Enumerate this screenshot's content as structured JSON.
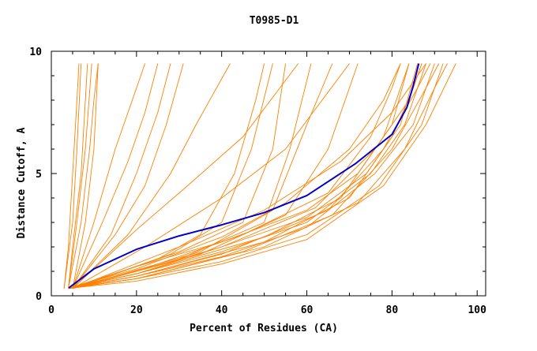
{
  "chart_data": {
    "type": "line",
    "title": "T0985-D1",
    "xlabel": "Percent of Residues (CA)",
    "ylabel": "Distance Cutoff, A",
    "xlim": [
      0,
      102
    ],
    "ylim": [
      0,
      10
    ],
    "xticks": [
      "0",
      "20",
      "40",
      "60",
      "80",
      "100"
    ],
    "xtick_values": [
      0,
      20,
      40,
      60,
      80,
      100
    ],
    "yticks": [
      "0",
      "5",
      "10"
    ],
    "ytick_values": [
      0,
      5,
      10
    ],
    "grid": false,
    "colors": {
      "others": "#ff8000",
      "highlight": "#0000cc"
    },
    "series": [
      {
        "points": [
          [
            3,
            0.3
          ],
          [
            4,
            2
          ],
          [
            5,
            5
          ],
          [
            6,
            8
          ],
          [
            6.5,
            9.5
          ]
        ]
      },
      {
        "points": [
          [
            3,
            0.3
          ],
          [
            5,
            3
          ],
          [
            6,
            6
          ],
          [
            7,
            9.5
          ]
        ]
      },
      {
        "points": [
          [
            4,
            0.3
          ],
          [
            5,
            2
          ],
          [
            7,
            5
          ],
          [
            8,
            8
          ],
          [
            8.5,
            9.5
          ]
        ]
      },
      {
        "points": [
          [
            4,
            0.3
          ],
          [
            6,
            3
          ],
          [
            8,
            6
          ],
          [
            9.5,
            9.5
          ]
        ]
      },
      {
        "points": [
          [
            4,
            0.3
          ],
          [
            7,
            3
          ],
          [
            9,
            6
          ],
          [
            10,
            8
          ],
          [
            11,
            9.5
          ]
        ]
      },
      {
        "points": [
          [
            5,
            0.3
          ],
          [
            8,
            3
          ],
          [
            10,
            6
          ],
          [
            11,
            9.5
          ]
        ]
      },
      {
        "points": [
          [
            5,
            0.3
          ],
          [
            10,
            3
          ],
          [
            15,
            6
          ],
          [
            19,
            8
          ],
          [
            22,
            9.5
          ]
        ]
      },
      {
        "points": [
          [
            5,
            0.3
          ],
          [
            12,
            3
          ],
          [
            18,
            5.5
          ],
          [
            22,
            7.5
          ],
          [
            25,
            9.5
          ]
        ]
      },
      {
        "points": [
          [
            5,
            0.3
          ],
          [
            14,
            2.5
          ],
          [
            20,
            5
          ],
          [
            25,
            7.5
          ],
          [
            28,
            9.5
          ]
        ]
      },
      {
        "points": [
          [
            5,
            0.3
          ],
          [
            15,
            2.5
          ],
          [
            22,
            4.5
          ],
          [
            27,
            7
          ],
          [
            31,
            9.5
          ]
        ]
      },
      {
        "points": [
          [
            5,
            0.3
          ],
          [
            18,
            2.5
          ],
          [
            28,
            5
          ],
          [
            34,
            7
          ],
          [
            42,
            9.5
          ]
        ]
      },
      {
        "points": [
          [
            5,
            0.3
          ],
          [
            20,
            2.7
          ],
          [
            32,
            4.5
          ],
          [
            45,
            6.5
          ],
          [
            58,
            9.5
          ]
        ]
      },
      {
        "points": [
          [
            5,
            0.3
          ],
          [
            22,
            2
          ],
          [
            40,
            4
          ],
          [
            55,
            6
          ],
          [
            70,
            9.5
          ]
        ]
      },
      {
        "points": [
          [
            5,
            0.3
          ],
          [
            25,
            1.5
          ],
          [
            35,
            2.5
          ],
          [
            43,
            5
          ],
          [
            48,
            8
          ],
          [
            50,
            9.5
          ]
        ]
      },
      {
        "points": [
          [
            5,
            0.3
          ],
          [
            28,
            1.7
          ],
          [
            40,
            3
          ],
          [
            47,
            6
          ],
          [
            52,
            9.5
          ]
        ]
      },
      {
        "points": [
          [
            5,
            0.3
          ],
          [
            30,
            1.8
          ],
          [
            45,
            3
          ],
          [
            52,
            6
          ],
          [
            55,
            9.5
          ]
        ]
      },
      {
        "points": [
          [
            5,
            0.3
          ],
          [
            30,
            1.5
          ],
          [
            50,
            3
          ],
          [
            56,
            6
          ],
          [
            61,
            9.5
          ]
        ]
      },
      {
        "points": [
          [
            5,
            0.3
          ],
          [
            35,
            1.8
          ],
          [
            52,
            3.5
          ],
          [
            60,
            7
          ],
          [
            66,
            9.5
          ]
        ]
      },
      {
        "points": [
          [
            5,
            0.3
          ],
          [
            35,
            1.7
          ],
          [
            55,
            3.3
          ],
          [
            65,
            6
          ],
          [
            72,
            9.5
          ]
        ]
      },
      {
        "points": [
          [
            5,
            0.3
          ],
          [
            30,
            2
          ],
          [
            50,
            3.5
          ],
          [
            68,
            5.5
          ],
          [
            80,
            7.5
          ],
          [
            88,
            9.5
          ]
        ]
      },
      {
        "points": [
          [
            4,
            0.3
          ],
          [
            20,
            1.2
          ],
          [
            40,
            2.2
          ],
          [
            60,
            3.5
          ],
          [
            72,
            5
          ],
          [
            80,
            7
          ],
          [
            84,
            9.5
          ]
        ]
      },
      {
        "points": [
          [
            4,
            0.3
          ],
          [
            20,
            1
          ],
          [
            40,
            2
          ],
          [
            60,
            3.2
          ],
          [
            74,
            5
          ],
          [
            82,
            7
          ],
          [
            86,
            9.5
          ]
        ]
      },
      {
        "points": [
          [
            4,
            0.3
          ],
          [
            20,
            0.9
          ],
          [
            40,
            1.8
          ],
          [
            60,
            3
          ],
          [
            75,
            5
          ],
          [
            83,
            7
          ],
          [
            88,
            9.5
          ]
        ]
      },
      {
        "points": [
          [
            4,
            0.3
          ],
          [
            20,
            0.8
          ],
          [
            40,
            1.6
          ],
          [
            60,
            2.8
          ],
          [
            76,
            5
          ],
          [
            85,
            7
          ],
          [
            90,
            9.5
          ]
        ]
      },
      {
        "points": [
          [
            4,
            0.3
          ],
          [
            20,
            0.7
          ],
          [
            40,
            1.4
          ],
          [
            60,
            2.5
          ],
          [
            77,
            4.5
          ],
          [
            87,
            7
          ],
          [
            92,
            9.5
          ]
        ]
      },
      {
        "points": [
          [
            4,
            0.3
          ],
          [
            20,
            0.6
          ],
          [
            40,
            1.3
          ],
          [
            60,
            2.3
          ],
          [
            78,
            4.5
          ],
          [
            88,
            7
          ],
          [
            95,
            9.5
          ]
        ]
      },
      {
        "points": [
          [
            4,
            0.3
          ],
          [
            20,
            1.1
          ],
          [
            40,
            2.4
          ],
          [
            55,
            3.8
          ],
          [
            70,
            6
          ],
          [
            78,
            8
          ],
          [
            82,
            9.5
          ]
        ]
      },
      {
        "points": [
          [
            4,
            0.3
          ],
          [
            20,
            0.9
          ],
          [
            40,
            2
          ],
          [
            62,
            3.6
          ],
          [
            76,
            6
          ],
          [
            84,
            8
          ],
          [
            87,
            9.5
          ]
        ]
      },
      {
        "points": [
          [
            4,
            0.3
          ],
          [
            20,
            0.8
          ],
          [
            40,
            1.7
          ],
          [
            65,
            3.5
          ],
          [
            78,
            6
          ],
          [
            86,
            8.5
          ],
          [
            89,
            9.5
          ]
        ]
      },
      {
        "points": [
          [
            4,
            0.3
          ],
          [
            20,
            0.7
          ],
          [
            45,
            1.8
          ],
          [
            66,
            3.3
          ],
          [
            80,
            6
          ],
          [
            88,
            8.5
          ],
          [
            91,
            9.5
          ]
        ]
      },
      {
        "points": [
          [
            4,
            0.3
          ],
          [
            20,
            0.9
          ],
          [
            50,
            2.4
          ],
          [
            68,
            4
          ],
          [
            78,
            6.5
          ],
          [
            82,
            8.5
          ],
          [
            84,
            9.5
          ]
        ]
      },
      {
        "points": [
          [
            4,
            0.3
          ],
          [
            20,
            1
          ],
          [
            45,
            2.5
          ],
          [
            65,
            4.2
          ],
          [
            75,
            6.5
          ],
          [
            80,
            8.5
          ],
          [
            82,
            9.5
          ]
        ]
      },
      {
        "points": [
          [
            4,
            0.3
          ],
          [
            20,
            0.8
          ],
          [
            50,
            2.2
          ],
          [
            70,
            4
          ],
          [
            80,
            6.5
          ],
          [
            85,
            8.5
          ],
          [
            87,
            9.5
          ]
        ]
      },
      {
        "points": [
          [
            4,
            0.3
          ],
          [
            20,
            0.7
          ],
          [
            50,
            2
          ],
          [
            72,
            3.8
          ],
          [
            83,
            6
          ],
          [
            90,
            8.5
          ],
          [
            93,
            9.5
          ]
        ]
      },
      {
        "highlight": true,
        "points": [
          [
            4.1,
            0.32
          ],
          [
            10,
            1.1
          ],
          [
            20,
            1.9
          ],
          [
            30,
            2.45
          ],
          [
            40,
            2.9
          ],
          [
            50,
            3.4
          ],
          [
            60,
            4.1
          ],
          [
            71.4,
            5.4
          ],
          [
            80,
            6.6
          ],
          [
            83.5,
            7.7
          ],
          [
            85,
            8.6
          ],
          [
            86.3,
            9.5
          ]
        ]
      }
    ]
  }
}
